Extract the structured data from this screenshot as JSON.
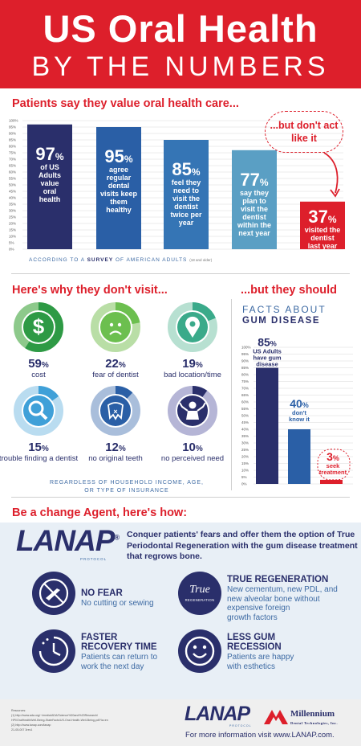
{
  "header": {
    "title_line1": "US Oral Health",
    "title_line2": "BY THE NUMBERS"
  },
  "section1": {
    "heading": "Patients say they value oral health care...",
    "bubble": "...but don't act like it",
    "survey_prefix": "ACCORDING TO A",
    "survey_bold": "SURVEY",
    "survey_suffix": "OF AMERICAN ADULTS",
    "survey_small": "(18 and older)"
  },
  "chart_data": [
    {
      "type": "bar",
      "categories": [
        "of US Adults value oral health",
        "agree regular dental visits keep them healthy",
        "feel they need to visit the dentist twice per year",
        "say they plan to visit the dentist within the next year",
        "visited the dentist last year"
      ],
      "values": [
        97,
        95,
        85,
        77,
        37
      ],
      "ylim": [
        0,
        100
      ],
      "yticks": [
        "0%",
        "5%",
        "10%",
        "15%",
        "20%",
        "25%",
        "30%",
        "35%",
        "40%",
        "45%",
        "50%",
        "55%",
        "60%",
        "65%",
        "70%",
        "75%",
        "80%",
        "85%",
        "90%",
        "95%",
        "100%"
      ],
      "bars": [
        {
          "pct": "97",
          "lines": [
            "of US",
            "Adults",
            "value",
            "oral",
            "health"
          ]
        },
        {
          "pct": "95",
          "lines": [
            "agree",
            "regular",
            "dental",
            "visits keep",
            "them",
            "healthy"
          ]
        },
        {
          "pct": "85",
          "lines": [
            "feel they",
            "need to",
            "visit the",
            "dentist",
            "twice per",
            "year"
          ]
        },
        {
          "pct": "77",
          "lines": [
            "say they",
            "plan to",
            "visit the",
            "dentist",
            "within the",
            "next year"
          ]
        },
        {
          "pct": "37",
          "lines": [
            "visited the",
            "dentist",
            "last year"
          ]
        }
      ],
      "colors": [
        "#2a2f6b",
        "#2a5fa6",
        "#3575b5",
        "#5a9fc4",
        "#dd1f2b"
      ],
      "grid": true
    },
    {
      "type": "bar",
      "title": "FACTS ABOUT GUM DISEASE",
      "categories": [
        "US Adults have gum disease",
        "don't know it",
        "seek treatment"
      ],
      "values": [
        85,
        40,
        3
      ],
      "ylim": [
        0,
        100
      ],
      "yticks": [
        "0%",
        "5%",
        "10%",
        "15%",
        "20%",
        "25%",
        "30%",
        "35%",
        "40%",
        "45%",
        "50%",
        "55%",
        "60%",
        "65%",
        "70%",
        "75%",
        "80%",
        "85%",
        "90%",
        "95%",
        "100%"
      ],
      "bars": [
        {
          "pct": "85",
          "lines": [
            "US Adults",
            "have gum",
            "disease"
          ]
        },
        {
          "pct": "40",
          "lines": [
            "don't",
            "know it"
          ]
        },
        {
          "pct": "3",
          "lines": [
            "seek",
            "treatment"
          ]
        }
      ],
      "colors": [
        "#2a2f6b",
        "#2a5fa6",
        "#dd1f2b"
      ],
      "grid": true
    }
  ],
  "section2": {
    "heading_left": "Here's why they don't visit...",
    "heading_right": "...but they should",
    "facts_line1": "FACTS ABOUT",
    "facts_line2": "GUM DISEASE",
    "regardless": "REGARDLESS OF HOUSEHOLD INCOME, AGE, OR TYPE OF INSURANCE",
    "reasons": [
      {
        "pct": "59",
        "label": "cost",
        "value": 0.59,
        "icon": "dollar-icon",
        "base": "#8dc98b",
        "fill": "#2e9a45",
        "core": "#2e9a45"
      },
      {
        "pct": "22",
        "label": "fear of dentist",
        "value": 0.22,
        "icon": "sad-face-icon",
        "base": "#b9dea6",
        "fill": "#6cbf4f",
        "core": "#6cbf4f"
      },
      {
        "pct": "19",
        "label": "bad location/time",
        "value": 0.19,
        "icon": "location-pin-icon",
        "base": "#b7e0d1",
        "fill": "#3aaa8a",
        "core": "#3aaa8a"
      },
      {
        "pct": "15",
        "label": "trouble finding a dentist",
        "value": 0.15,
        "icon": "magnifier-icon",
        "base": "#b9dcf0",
        "fill": "#3fa0d8",
        "core": "#3fa0d8"
      },
      {
        "pct": "12",
        "label": "no original teeth",
        "value": 0.12,
        "icon": "broken-tooth-icon",
        "base": "#a9bedb",
        "fill": "#2a5fa6",
        "core": "#2a5fa6"
      },
      {
        "pct": "10",
        "label": "no perceived need",
        "value": 0.1,
        "icon": "shrug-person-icon",
        "base": "#b5b5d6",
        "fill": "#2a2f6b",
        "core": "#2a2f6b"
      }
    ]
  },
  "section3": {
    "heading": "Be a change Agent, here's how:",
    "logo": "LANAP",
    "logo_sub": "PROTOCOL",
    "reg": "®",
    "conquer": "Conquer patients' fears and offer them the option of True Periodontal Regeneration with the gum disease treatment that regrows bone.",
    "true_logo": "True",
    "true_logo_sub": "REGENERATION",
    "features": [
      {
        "title_lines": [
          "NO FEAR"
        ],
        "desc_lines": [
          "No cutting or sewing"
        ],
        "icon": "no-scalpel-icon"
      },
      {
        "title_lines": [
          "TRUE REGENERATION"
        ],
        "desc_lines": [
          "New cementum, new PDL, and",
          "new alveolar bone without",
          "expensive foreign",
          "growth factors"
        ],
        "icon": "true-regeneration-icon"
      },
      {
        "title_lines": [
          "FASTER",
          "RECOVERY TIME"
        ],
        "desc_lines": [
          "Patients can return to",
          "work the next day"
        ],
        "icon": "clock-icon"
      },
      {
        "title_lines": [
          "LESS GUM",
          "RECESSION"
        ],
        "desc_lines": [
          "Patients are happy",
          "with esthetics"
        ],
        "icon": "smile-icon"
      }
    ]
  },
  "footer": {
    "refs_title": "Resources:",
    "refs": [
      "(1) http://www.ada.org/~/media/ADA/Science%20and%20Research/",
      "HPI/OralHealthWell-Being-StateFacts/US-Oral-Health-Well-Being.pdf?la=en",
      "(2) http://www.lanap.com/lanap",
      "21-05-007 3rev1"
    ],
    "logo": "LANAP",
    "logo_sub": "PROTOCOL",
    "millennium_line1": "Millennium",
    "millennium_line2": "Dental Technologies, Inc.",
    "more_info": "For more information visit www.LANAP.com."
  }
}
